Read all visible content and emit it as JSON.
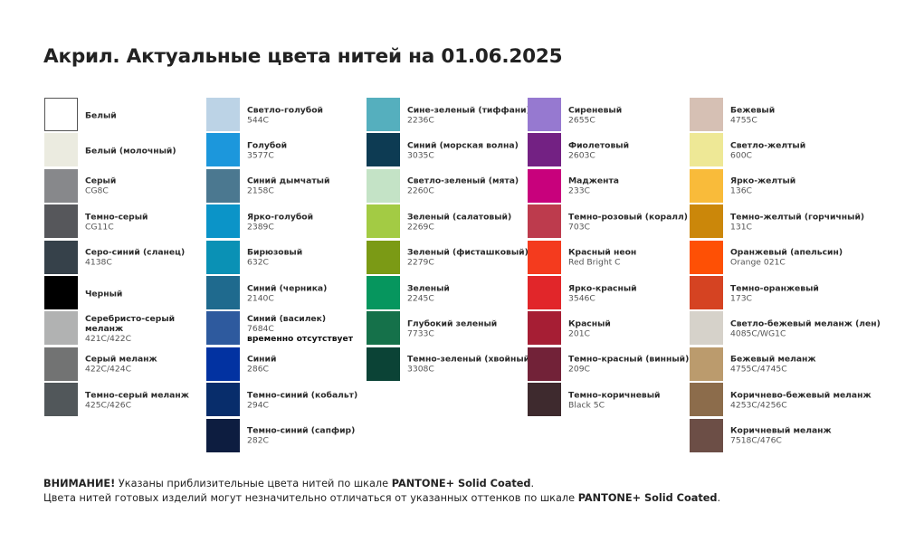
{
  "title": "Акрил. Актуальные цвета нитей на 01.06.2025",
  "columns": [
    [
      {
        "name": "Белый",
        "color": "#ffffff",
        "border": true
      },
      {
        "name": "Белый (молочный)",
        "color": "#ebebe0"
      },
      {
        "name": "Серый",
        "code": "CG8C",
        "color": "#87888b"
      },
      {
        "name": "Темно-серый",
        "code": "CG11C",
        "color": "#56575b"
      },
      {
        "name": "Серо-синий (сланец)",
        "code": "4138C",
        "color": "#36414a"
      },
      {
        "name": "Черный",
        "color": "#000000"
      },
      {
        "name": "Серебристо-серый меланж",
        "code": "421C/422C",
        "color": "#b1b2b2",
        "wrap": true
      },
      {
        "name": "Серый меланж",
        "code": "422C/424C",
        "color": "#727373"
      },
      {
        "name": "Темно-серый меланж",
        "code": "425C/426C",
        "color": "#51575a"
      }
    ],
    [
      {
        "name": "Светло-голубой",
        "code": "544C",
        "color": "#bcd3e6"
      },
      {
        "name": "Голубой",
        "code": "3577C",
        "color": "#1c97dc"
      },
      {
        "name": "Синий дымчатый",
        "code": "2158C",
        "color": "#4b7890"
      },
      {
        "name": "Ярко-голубой",
        "code": "2389C",
        "color": "#0b94c8"
      },
      {
        "name": "Бирюзовый",
        "code": "632C",
        "color": "#0a91b5"
      },
      {
        "name": "Синий (черника)",
        "code": "2140C",
        "color": "#1f6a8e"
      },
      {
        "name": "Синий (василек)",
        "code": "7684C",
        "note": "временно отсутствует",
        "color": "#2e5a9e"
      },
      {
        "name": "Синий",
        "code": "286C",
        "color": "#0232a1"
      },
      {
        "name": "Темно-синий (кобальт)",
        "code": "294C",
        "color": "#082d6b"
      },
      {
        "name": "Темно-синий (сапфир)",
        "code": "282C",
        "color": "#0d1d40"
      }
    ],
    [
      {
        "name": "Сине-зеленый (тиффани)",
        "code": "2236C",
        "color": "#55afbe"
      },
      {
        "name": "Синий (морская волна)",
        "code": "3035C",
        "color": "#0d3b53"
      },
      {
        "name": "Светло-зеленый (мята)",
        "code": "2260C",
        "color": "#c4e3c6"
      },
      {
        "name": "Зеленый (салатовый)",
        "code": "2269C",
        "color": "#a3cb44"
      },
      {
        "name": "Зеленый (фисташковый)",
        "code": "2279C",
        "color": "#7b9a15"
      },
      {
        "name": "Зеленый",
        "code": "2245C",
        "color": "#06965e"
      },
      {
        "name": "Глубокий зеленый",
        "code": "7733C",
        "color": "#15714a"
      },
      {
        "name": "Темно-зеленый (хвойный)",
        "code": "3308C",
        "color": "#0b4336"
      }
    ],
    [
      {
        "name": "Сиреневый",
        "code": "2655C",
        "color": "#9679d0"
      },
      {
        "name": "Фиолетовый",
        "code": "2603C",
        "color": "#732183"
      },
      {
        "name": "Маджента",
        "code": "233C",
        "color": "#c8017c"
      },
      {
        "name": "Темно-розовый (коралл)",
        "code": "703C",
        "color": "#bd3b4d"
      },
      {
        "name": "Красный неон",
        "code": "Red Bright C",
        "color": "#f43b1e"
      },
      {
        "name": "Ярко-красный",
        "code": "3546C",
        "color": "#e1262a"
      },
      {
        "name": "Красный",
        "code": "201C",
        "color": "#a61e34"
      },
      {
        "name": "Темно-красный (винный)",
        "code": "209C",
        "color": "#722238"
      },
      {
        "name": "Темно-коричневый",
        "code": "Black 5C",
        "color": "#3e2a2e"
      }
    ],
    [
      {
        "name": "Бежевый",
        "code": "4755C",
        "color": "#d6c0b4"
      },
      {
        "name": "Светло-желтый",
        "code": "600C",
        "color": "#eee896"
      },
      {
        "name": "Ярко-желтый",
        "code": "136C",
        "color": "#f9bb3a"
      },
      {
        "name": "Темно-желтый (горчичный)",
        "code": "131C",
        "color": "#cb870a"
      },
      {
        "name": "Оранжевый (апельсин)",
        "code": "Orange 021C",
        "color": "#fe5005"
      },
      {
        "name": "Темно-оранжевый",
        "code": "173C",
        "color": "#d54322"
      },
      {
        "name": "Светло-бежевый меланж (лен)",
        "code": "4085C/WG1C",
        "color": "#d6d2ca"
      },
      {
        "name": "Бежевый меланж",
        "code": "4755C/4745C",
        "color": "#bb9b6d"
      },
      {
        "name": "Коричнево-бежевый меланж",
        "code": "4253C/4256C",
        "color": "#8c6c4b"
      },
      {
        "name": "Коричневый меланж",
        "code": "7518C/476C",
        "color": "#6c4e46"
      }
    ]
  ],
  "footer": {
    "attention_label": "ВНИМАНИЕ!",
    "line1_text": " Указаны приблизительные цвета нитей по шкале ",
    "pantone": "PANTONE+ Solid Coated",
    "line1_end": ".",
    "line2_text": "Цвета нитей готовых изделий могут незначительно отличаться от указанных оттенков по шкале ",
    "line2_end": "."
  }
}
